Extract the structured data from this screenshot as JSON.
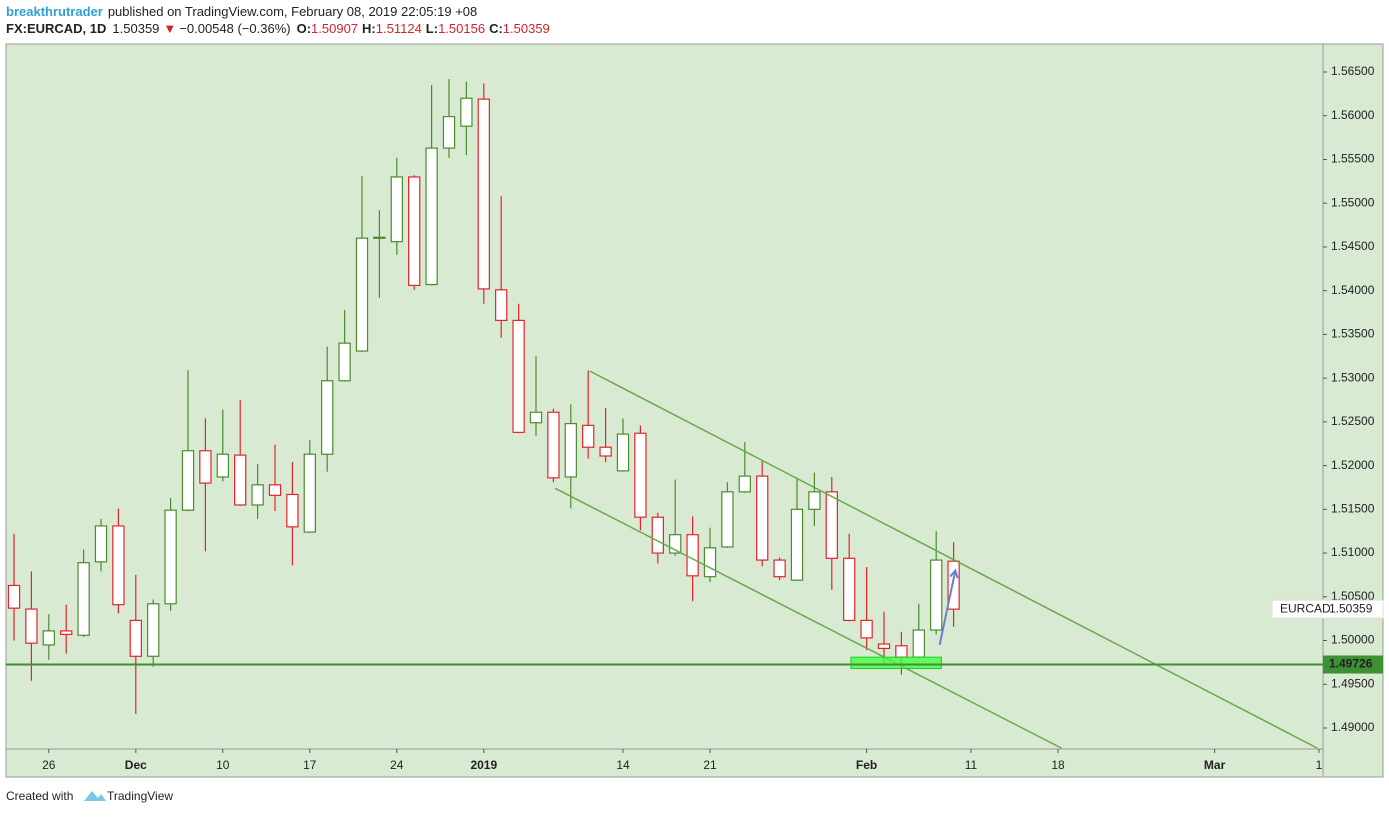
{
  "header": {
    "author": "breakthrutrader",
    "published": "published on TradingView.com, February 08, 2019 22:05:19 +08",
    "symbol": "FX:EURCAD, 1D",
    "arrow": "▼",
    "change": "−0.00548 (−0.36%)",
    "ohlc_labels": [
      "O:",
      "H:",
      "L:",
      "C:"
    ]
  },
  "chart_data": {
    "type": "candlestick",
    "symbol": "EURCAD",
    "open": [
      1.5063,
      1.5036,
      1.4995,
      1.5011,
      1.5006,
      1.509,
      1.5131,
      1.5023,
      1.4982,
      1.5042,
      1.5149,
      1.5217,
      1.5187,
      1.5212,
      1.5155,
      1.5178,
      1.5167,
      1.5124,
      1.5213,
      1.5297,
      1.5331,
      1.546,
      1.5456,
      1.553,
      1.5407,
      1.5563,
      1.5588,
      1.5619,
      1.5401,
      1.5366,
      1.5249,
      1.5261,
      1.5187,
      1.5246,
      1.5221,
      1.5194,
      1.5237,
      1.5141,
      1.51,
      1.5121,
      1.5073,
      1.5107,
      1.517,
      1.5188,
      1.5092,
      1.5069,
      1.515,
      1.517,
      1.5094,
      1.5023,
      1.4996,
      1.4994,
      1.4981,
      1.5012,
      1.50907
    ],
    "high": [
      1.5122,
      1.5079,
      1.503,
      1.5041,
      1.5104,
      1.5139,
      1.5151,
      1.5075,
      1.5047,
      1.5163,
      1.5309,
      1.5254,
      1.5264,
      1.5275,
      1.5202,
      1.5224,
      1.5204,
      1.5229,
      1.5336,
      1.5378,
      1.5531,
      1.5492,
      1.5552,
      1.5532,
      1.5635,
      1.5642,
      1.5639,
      1.5637,
      1.5508,
      1.5385,
      1.5325,
      1.5265,
      1.527,
      1.5309,
      1.5266,
      1.5254,
      1.5246,
      1.5146,
      1.5184,
      1.5142,
      1.5129,
      1.5181,
      1.5227,
      1.5205,
      1.5095,
      1.5186,
      1.5192,
      1.5187,
      1.5122,
      1.5084,
      1.5033,
      1.501,
      1.5042,
      1.5125,
      1.51124
    ],
    "low": [
      1.5,
      1.4954,
      1.4978,
      1.4985,
      1.5004,
      1.5079,
      1.5031,
      1.4916,
      1.497,
      1.5034,
      1.5148,
      1.5102,
      1.5182,
      1.5154,
      1.5139,
      1.5148,
      1.5086,
      1.5123,
      1.5193,
      1.5296,
      1.533,
      1.5392,
      1.5441,
      1.5401,
      1.5406,
      1.5552,
      1.5555,
      1.5385,
      1.5346,
      1.5237,
      1.5234,
      1.5181,
      1.5151,
      1.5208,
      1.5204,
      1.5193,
      1.5126,
      1.5088,
      1.5097,
      1.5045,
      1.5067,
      1.5106,
      1.5169,
      1.5085,
      1.5069,
      1.5068,
      1.5131,
      1.5058,
      1.5022,
      1.4989,
      1.4972,
      1.4961,
      1.498,
      1.5007,
      1.50156
    ],
    "close": [
      1.5037,
      1.4997,
      1.5011,
      1.5007,
      1.5089,
      1.5131,
      1.5041,
      1.4982,
      1.5042,
      1.5149,
      1.5217,
      1.518,
      1.5213,
      1.5155,
      1.5178,
      1.5166,
      1.513,
      1.5213,
      1.5297,
      1.534,
      1.546,
      1.5461,
      1.553,
      1.5406,
      1.5563,
      1.5599,
      1.562,
      1.5402,
      1.5366,
      1.5238,
      1.5261,
      1.5186,
      1.5248,
      1.5221,
      1.5211,
      1.5236,
      1.5141,
      1.51,
      1.5121,
      1.5074,
      1.5106,
      1.517,
      1.5188,
      1.5092,
      1.5073,
      1.515,
      1.517,
      1.5094,
      1.5023,
      1.5003,
      1.4991,
      1.4981,
      1.5012,
      1.5092,
      1.50359
    ],
    "up_color": "#4c8a2e",
    "down_color": "#e3242b",
    "background": "#d9ead3",
    "xlim": [
      -0.46,
      75.23
    ],
    "ylim": [
      1.4876,
      1.5682
    ],
    "xticks": [
      {
        "value": 2,
        "label": "26"
      },
      {
        "value": 7,
        "label": "Dec"
      },
      {
        "value": 12,
        "label": "10"
      },
      {
        "value": 17,
        "label": "17"
      },
      {
        "value": 22,
        "label": "24"
      },
      {
        "value": 27,
        "label": "2019"
      },
      {
        "value": 35,
        "label": "14"
      },
      {
        "value": 40,
        "label": "21"
      },
      {
        "value": 49,
        "label": "Feb"
      },
      {
        "value": 55,
        "label": "11"
      },
      {
        "value": 60,
        "label": "18"
      },
      {
        "value": 69,
        "label": "Mar"
      },
      {
        "value": 75,
        "label": "1"
      }
    ],
    "yticks": [
      {
        "value": 1.565,
        "label": "1.56500"
      },
      {
        "value": 1.56,
        "label": "1.56000"
      },
      {
        "value": 1.555,
        "label": "1.55500"
      },
      {
        "value": 1.55,
        "label": "1.55000"
      },
      {
        "value": 1.545,
        "label": "1.54500"
      },
      {
        "value": 1.54,
        "label": "1.54000"
      },
      {
        "value": 1.535,
        "label": "1.53500"
      },
      {
        "value": 1.53,
        "label": "1.53000"
      },
      {
        "value": 1.525,
        "label": "1.52500"
      },
      {
        "value": 1.52,
        "label": "1.52000"
      },
      {
        "value": 1.515,
        "label": "1.51500"
      },
      {
        "value": 1.51,
        "label": "1.51000"
      },
      {
        "value": 1.505,
        "label": "1.50500"
      },
      {
        "value": 1.5,
        "label": "1.50000"
      },
      {
        "value": 1.495,
        "label": "1.49500"
      },
      {
        "value": 1.49,
        "label": "1.49000"
      }
    ],
    "grid": false,
    "hline": {
      "value": 1.49726,
      "color": "#3f8f35"
    },
    "trendlines": [
      {
        "points": [
          [
            33.1,
            1.5308
          ],
          [
            74.9,
            1.4877
          ]
        ],
        "color": "#6aa84f"
      },
      {
        "points": [
          [
            31.1,
            1.5174
          ],
          [
            60.2,
            1.4877
          ]
        ],
        "color": "#6aa84f"
      }
    ],
    "highlight": {
      "x": [
        48.1,
        53.3
      ],
      "y": [
        1.4968,
        1.4981
      ],
      "color": "#39ff39"
    },
    "arrow": {
      "points": [
        [
          53.2,
          1.4995
        ],
        [
          54.1,
          1.508
        ]
      ],
      "color": "#6b7fd0"
    }
  },
  "footer": {
    "created": "Created with",
    "brand": "TradingView"
  }
}
